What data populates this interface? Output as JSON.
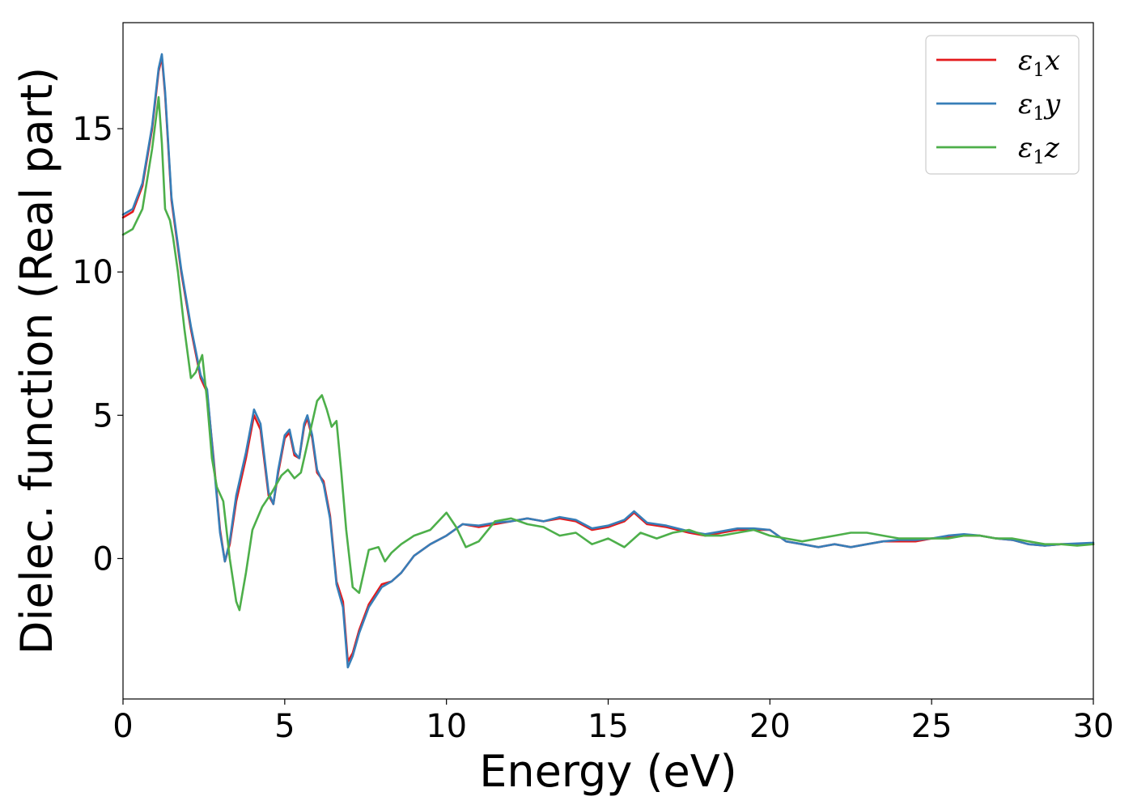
{
  "chart_data": {
    "type": "line",
    "title": "",
    "xlabel": "Energy (eV)",
    "ylabel": "Dielec. function (Real part)",
    "xlim": [
      0,
      30
    ],
    "ylim": [
      -4.9,
      18.7
    ],
    "xticks": [
      0,
      5,
      10,
      15,
      20,
      25,
      30
    ],
    "yticks": [
      0,
      5,
      10,
      15
    ],
    "grid": false,
    "legend_position": "top-right",
    "colors": {
      "x": "#e41a1c",
      "y": "#377eb8",
      "z": "#4daf4a"
    },
    "series": [
      {
        "name": "ε1x",
        "legend_base": "ε",
        "legend_sub": "1",
        "legend_var": "x",
        "color": "#e41a1c",
        "x": [
          0,
          0.3,
          0.6,
          0.9,
          1.1,
          1.2,
          1.3,
          1.5,
          1.8,
          2.1,
          2.4,
          2.6,
          2.8,
          3.0,
          3.15,
          3.3,
          3.5,
          3.8,
          4.05,
          4.25,
          4.5,
          4.65,
          4.8,
          5.0,
          5.15,
          5.3,
          5.45,
          5.6,
          5.7,
          5.85,
          6.0,
          6.2,
          6.4,
          6.6,
          6.8,
          6.95,
          7.1,
          7.3,
          7.6,
          8.0,
          8.3,
          8.6,
          9.0,
          9.5,
          10.0,
          10.5,
          11.0,
          11.5,
          12.0,
          12.5,
          13.0,
          13.5,
          14.0,
          14.5,
          15.0,
          15.5,
          15.8,
          16.2,
          16.8,
          17.5,
          18.0,
          18.5,
          19.0,
          19.5,
          20.0,
          20.5,
          21.0,
          21.5,
          22.0,
          22.5,
          23.0,
          23.5,
          24.0,
          24.5,
          25.0,
          25.5,
          26.0,
          26.5,
          27.0,
          27.5,
          28.0,
          28.5,
          29.0,
          30.0
        ],
        "values": [
          11.9,
          12.1,
          13.0,
          15.0,
          17.0,
          17.5,
          16.2,
          12.5,
          10.0,
          8.0,
          6.3,
          5.8,
          3.5,
          1.0,
          -0.1,
          0.5,
          2.0,
          3.5,
          5.0,
          4.5,
          2.2,
          1.9,
          3.0,
          4.2,
          4.4,
          3.6,
          3.5,
          4.6,
          4.9,
          4.2,
          3.0,
          2.7,
          1.5,
          -0.8,
          -1.5,
          -3.6,
          -3.3,
          -2.5,
          -1.6,
          -0.9,
          -0.8,
          -0.5,
          0.1,
          0.5,
          0.8,
          1.2,
          1.1,
          1.2,
          1.3,
          1.4,
          1.3,
          1.4,
          1.3,
          1.0,
          1.1,
          1.3,
          1.6,
          1.2,
          1.1,
          0.9,
          0.8,
          0.9,
          1.0,
          1.0,
          1.0,
          0.6,
          0.5,
          0.4,
          0.5,
          0.4,
          0.5,
          0.6,
          0.6,
          0.6,
          0.7,
          0.75,
          0.8,
          0.8,
          0.7,
          0.65,
          0.5,
          0.45,
          0.5,
          0.5
        ]
      },
      {
        "name": "ε1y",
        "legend_base": "ε",
        "legend_sub": "1",
        "legend_var": "y",
        "color": "#377eb8",
        "x": [
          0,
          0.3,
          0.6,
          0.9,
          1.1,
          1.2,
          1.3,
          1.5,
          1.8,
          2.1,
          2.4,
          2.6,
          2.8,
          3.0,
          3.15,
          3.3,
          3.5,
          3.8,
          4.05,
          4.25,
          4.5,
          4.65,
          4.8,
          5.0,
          5.15,
          5.3,
          5.45,
          5.6,
          5.7,
          5.85,
          6.0,
          6.2,
          6.4,
          6.6,
          6.8,
          6.95,
          7.1,
          7.3,
          7.6,
          8.0,
          8.3,
          8.6,
          9.0,
          9.5,
          10.0,
          10.5,
          11.0,
          11.5,
          12.0,
          12.5,
          13.0,
          13.5,
          14.0,
          14.5,
          15.0,
          15.5,
          15.8,
          16.2,
          16.8,
          17.5,
          18.0,
          18.5,
          19.0,
          19.5,
          20.0,
          20.5,
          21.0,
          21.5,
          22.0,
          22.5,
          23.0,
          23.5,
          24.0,
          24.5,
          25.0,
          25.5,
          26.0,
          26.5,
          27.0,
          27.5,
          28.0,
          28.5,
          29.0,
          30.0
        ],
        "values": [
          12.0,
          12.2,
          13.1,
          15.1,
          17.1,
          17.6,
          16.3,
          12.6,
          10.1,
          8.1,
          6.4,
          5.9,
          3.4,
          0.9,
          -0.1,
          0.6,
          2.2,
          3.7,
          5.2,
          4.7,
          2.3,
          1.9,
          3.1,
          4.3,
          4.5,
          3.7,
          3.5,
          4.7,
          5.0,
          4.3,
          3.1,
          2.6,
          1.4,
          -0.9,
          -1.7,
          -3.8,
          -3.4,
          -2.6,
          -1.7,
          -1.0,
          -0.8,
          -0.5,
          0.1,
          0.5,
          0.8,
          1.2,
          1.15,
          1.25,
          1.3,
          1.4,
          1.3,
          1.45,
          1.35,
          1.05,
          1.15,
          1.35,
          1.65,
          1.25,
          1.15,
          0.95,
          0.85,
          0.95,
          1.05,
          1.05,
          1.0,
          0.6,
          0.5,
          0.4,
          0.5,
          0.4,
          0.5,
          0.6,
          0.65,
          0.65,
          0.7,
          0.8,
          0.85,
          0.8,
          0.7,
          0.65,
          0.5,
          0.45,
          0.5,
          0.55
        ]
      },
      {
        "name": "ε1z",
        "legend_base": "ε",
        "legend_sub": "1",
        "legend_var": "z",
        "color": "#4daf4a",
        "x": [
          0,
          0.3,
          0.6,
          0.9,
          1.1,
          1.2,
          1.3,
          1.45,
          1.55,
          1.7,
          1.9,
          2.1,
          2.25,
          2.45,
          2.6,
          2.75,
          2.9,
          3.1,
          3.3,
          3.5,
          3.6,
          3.8,
          4.0,
          4.3,
          4.6,
          4.9,
          5.1,
          5.3,
          5.5,
          5.8,
          6.0,
          6.15,
          6.3,
          6.45,
          6.6,
          6.75,
          6.9,
          7.1,
          7.3,
          7.6,
          7.9,
          8.1,
          8.3,
          8.6,
          9.0,
          9.5,
          10.0,
          10.3,
          10.6,
          11.0,
          11.5,
          12.0,
          12.5,
          13.0,
          13.5,
          14.0,
          14.5,
          15.0,
          15.5,
          16.0,
          16.5,
          17.0,
          17.5,
          18.0,
          18.5,
          19.0,
          19.5,
          20.0,
          20.5,
          21.0,
          21.5,
          22.0,
          22.5,
          23.0,
          23.5,
          24.0,
          24.5,
          25.0,
          25.5,
          26.0,
          26.5,
          27.0,
          27.5,
          28.0,
          28.5,
          29.0,
          29.5,
          30.0
        ],
        "values": [
          11.3,
          11.5,
          12.2,
          14.3,
          16.1,
          14.5,
          12.2,
          11.8,
          11.2,
          10.0,
          8.0,
          6.3,
          6.5,
          7.1,
          5.5,
          3.5,
          2.5,
          2.0,
          0.0,
          -1.5,
          -1.8,
          -0.5,
          1.0,
          1.8,
          2.3,
          2.9,
          3.1,
          2.8,
          3.0,
          4.5,
          5.5,
          5.7,
          5.2,
          4.6,
          4.8,
          3.0,
          1.0,
          -1.0,
          -1.2,
          0.3,
          0.4,
          -0.1,
          0.2,
          0.5,
          0.8,
          1.0,
          1.6,
          1.1,
          0.4,
          0.6,
          1.3,
          1.4,
          1.2,
          1.1,
          0.8,
          0.9,
          0.5,
          0.7,
          0.4,
          0.9,
          0.7,
          0.9,
          1.0,
          0.8,
          0.8,
          0.9,
          1.0,
          0.8,
          0.7,
          0.6,
          0.7,
          0.8,
          0.9,
          0.9,
          0.8,
          0.7,
          0.7,
          0.7,
          0.7,
          0.8,
          0.8,
          0.7,
          0.7,
          0.6,
          0.5,
          0.5,
          0.45,
          0.5
        ]
      }
    ]
  }
}
